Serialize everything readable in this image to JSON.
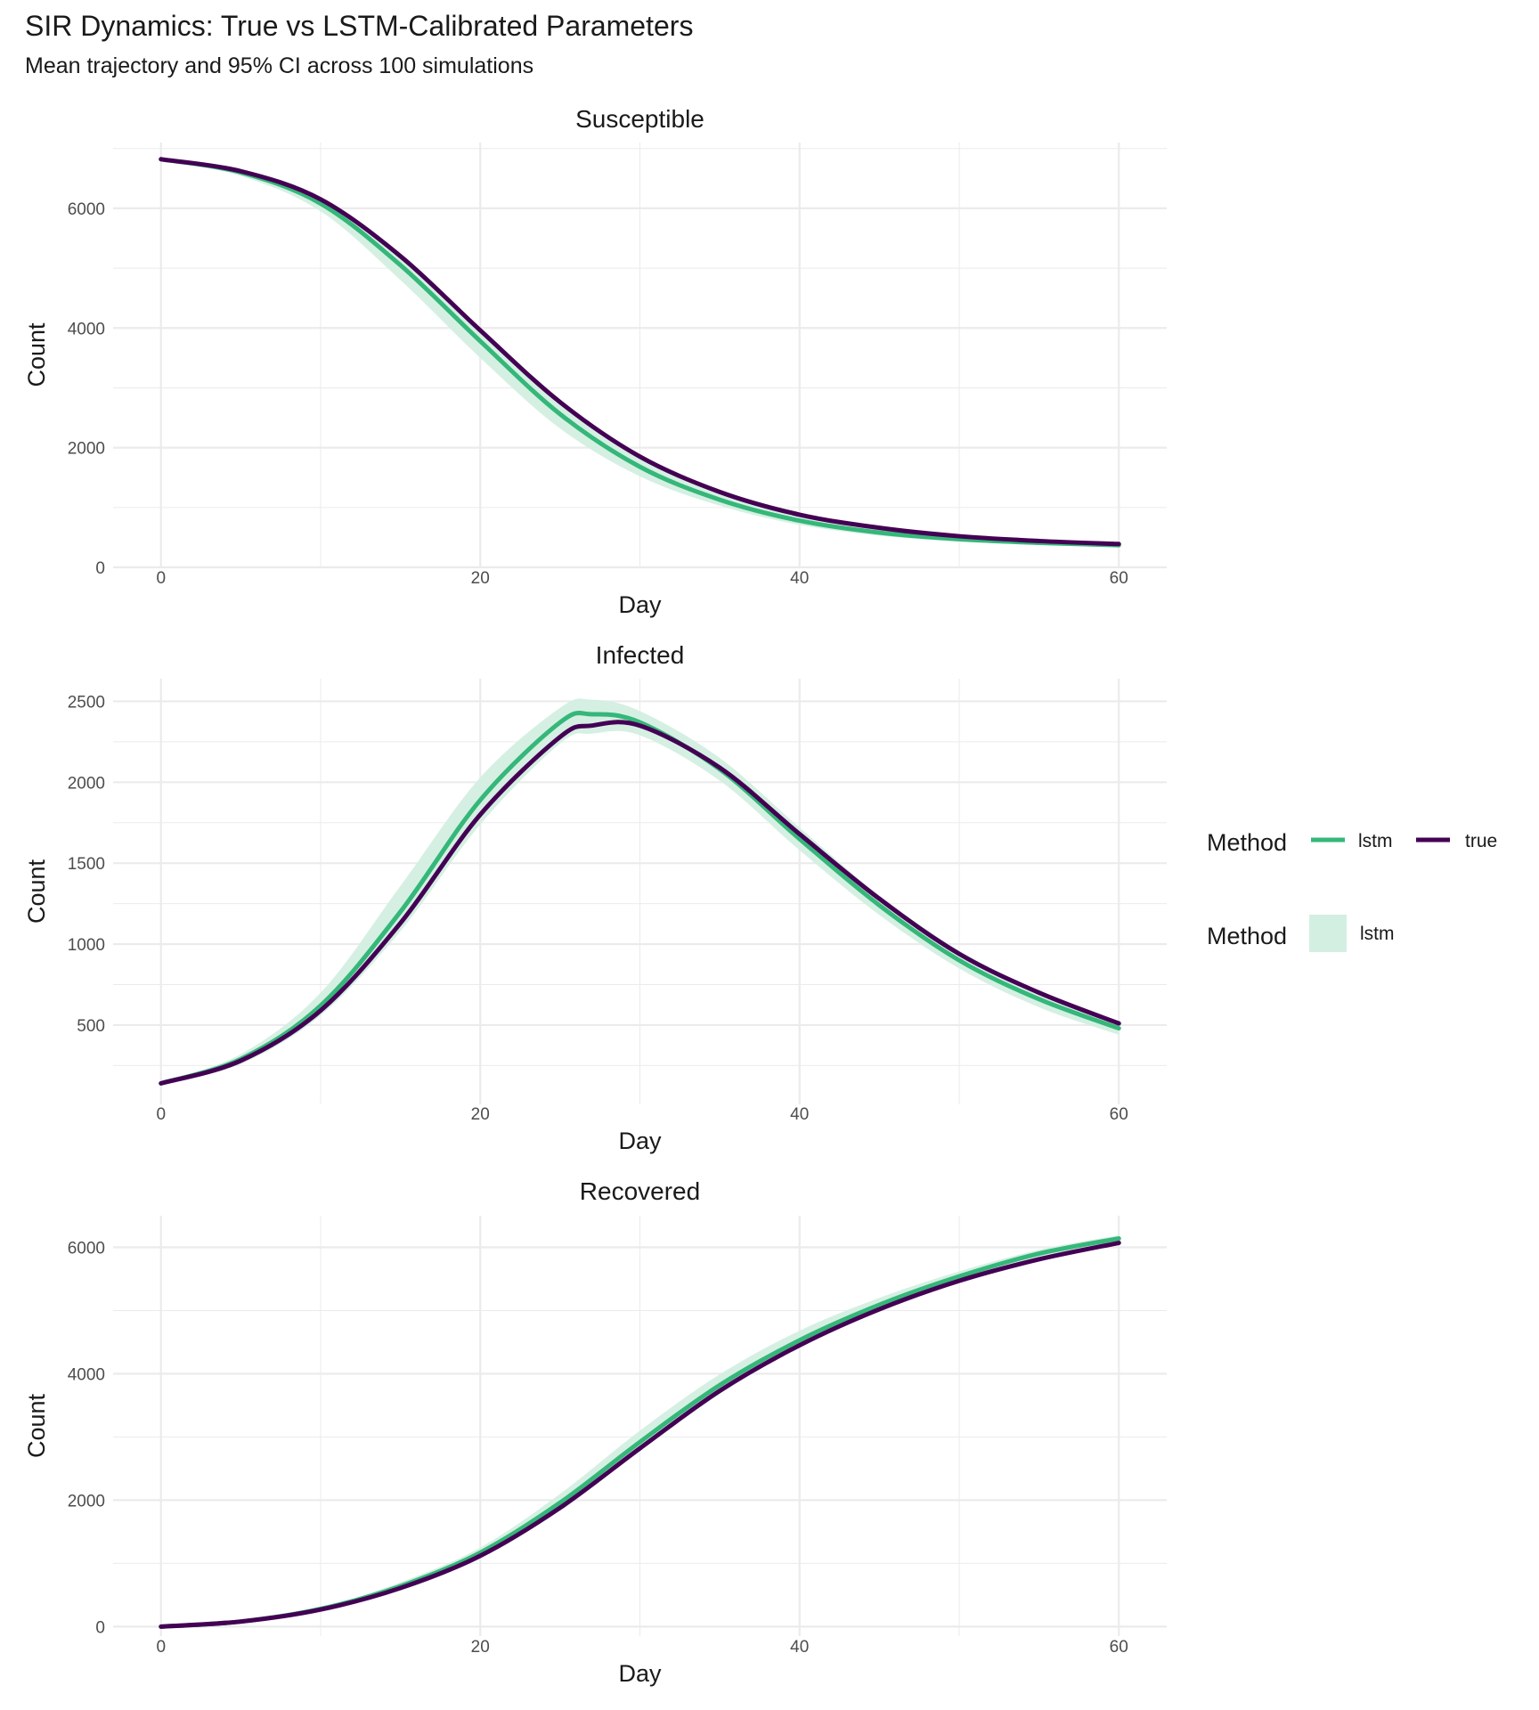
{
  "title": "SIR Dynamics: True vs LSTM-Calibrated Parameters",
  "subtitle": "Mean trajectory and 95% CI across 100 simulations",
  "colors": {
    "lstm": "#35b779",
    "true": "#440154",
    "ribbon": "#d3efe1",
    "grid": "#ebebeb"
  },
  "legend": {
    "line_title": "Method",
    "line_entries": [
      {
        "key": "lstm",
        "label": "lstm"
      },
      {
        "key": "true",
        "label": "true"
      }
    ],
    "fill_title": "Method",
    "fill_entries": [
      {
        "key": "lstm",
        "label": "lstm"
      }
    ]
  },
  "chart_data": [
    {
      "type": "line",
      "panel": "Susceptible",
      "title": "Susceptible",
      "xlabel": "Day",
      "ylabel": "Count",
      "xlim": [
        -3,
        63
      ],
      "ylim": [
        0,
        7100
      ],
      "xticks": [
        0,
        20,
        40,
        60
      ],
      "yticks": [
        0,
        2000,
        4000,
        6000
      ],
      "x": [
        0,
        5,
        10,
        15,
        20,
        25,
        30,
        35,
        40,
        45,
        50,
        55,
        60
      ],
      "series": [
        {
          "name": "lstm",
          "values": [
            6820,
            6600,
            6080,
            5050,
            3780,
            2560,
            1680,
            1130,
            780,
            580,
            470,
            410,
            370
          ]
        },
        {
          "name": "true",
          "values": [
            6820,
            6620,
            6150,
            5200,
            3960,
            2760,
            1850,
            1260,
            880,
            660,
            520,
            440,
            390
          ]
        }
      ],
      "ribbon": {
        "name": "lstm",
        "lower": [
          6800,
          6540,
          5950,
          4800,
          3500,
          2320,
          1520,
          1030,
          710,
          530,
          430,
          380,
          340
        ],
        "upper": [
          6840,
          6660,
          6180,
          5250,
          4000,
          2780,
          1850,
          1250,
          860,
          630,
          510,
          440,
          400
        ]
      }
    },
    {
      "type": "line",
      "panel": "Infected",
      "title": "Infected",
      "xlabel": "Day",
      "ylabel": "Count",
      "xlim": [
        -3,
        63
      ],
      "ylim": [
        10,
        2640
      ],
      "xticks": [
        0,
        20,
        40,
        60
      ],
      "yticks": [
        500,
        1000,
        1500,
        2000,
        2500
      ],
      "x": [
        0,
        5,
        10,
        15,
        20,
        25,
        27,
        30,
        35,
        40,
        45,
        50,
        55,
        60
      ],
      "series": [
        {
          "name": "lstm",
          "values": [
            140,
            290,
            620,
            1200,
            1890,
            2370,
            2420,
            2370,
            2080,
            1650,
            1240,
            900,
            660,
            480
          ]
        },
        {
          "name": "true",
          "values": [
            140,
            280,
            590,
            1130,
            1800,
            2280,
            2350,
            2350,
            2090,
            1680,
            1280,
            940,
            700,
            510
          ]
        }
      ],
      "ribbon": {
        "name": "lstm",
        "lower": [
          130,
          260,
          560,
          1080,
          1740,
          2240,
          2300,
          2290,
          2010,
          1580,
          1180,
          850,
          610,
          440
        ],
        "upper": [
          150,
          320,
          700,
          1360,
          2030,
          2460,
          2510,
          2440,
          2150,
          1720,
          1300,
          960,
          710,
          520
        ]
      }
    },
    {
      "type": "line",
      "panel": "Recovered",
      "title": "Recovered",
      "xlabel": "Day",
      "ylabel": "Count",
      "xlim": [
        -3,
        63
      ],
      "ylim": [
        -150,
        6500
      ],
      "xticks": [
        0,
        20,
        40,
        60
      ],
      "yticks": [
        0,
        2000,
        4000,
        6000
      ],
      "x": [
        0,
        5,
        10,
        15,
        20,
        25,
        30,
        35,
        40,
        45,
        50,
        55,
        60
      ],
      "series": [
        {
          "name": "lstm",
          "values": [
            0,
            80,
            280,
            640,
            1170,
            1960,
            2920,
            3820,
            4530,
            5090,
            5540,
            5900,
            6140
          ]
        },
        {
          "name": "true",
          "values": [
            0,
            80,
            270,
            610,
            1120,
            1880,
            2820,
            3730,
            4450,
            5020,
            5470,
            5810,
            6070
          ]
        }
      ],
      "ribbon": {
        "name": "lstm",
        "lower": [
          -10,
          70,
          250,
          590,
          1090,
          1840,
          2780,
          3680,
          4420,
          5000,
          5460,
          5830,
          6090
        ],
        "upper": [
          10,
          90,
          300,
          700,
          1250,
          2100,
          3100,
          3990,
          4680,
          5200,
          5620,
          5960,
          6190
        ]
      }
    }
  ]
}
